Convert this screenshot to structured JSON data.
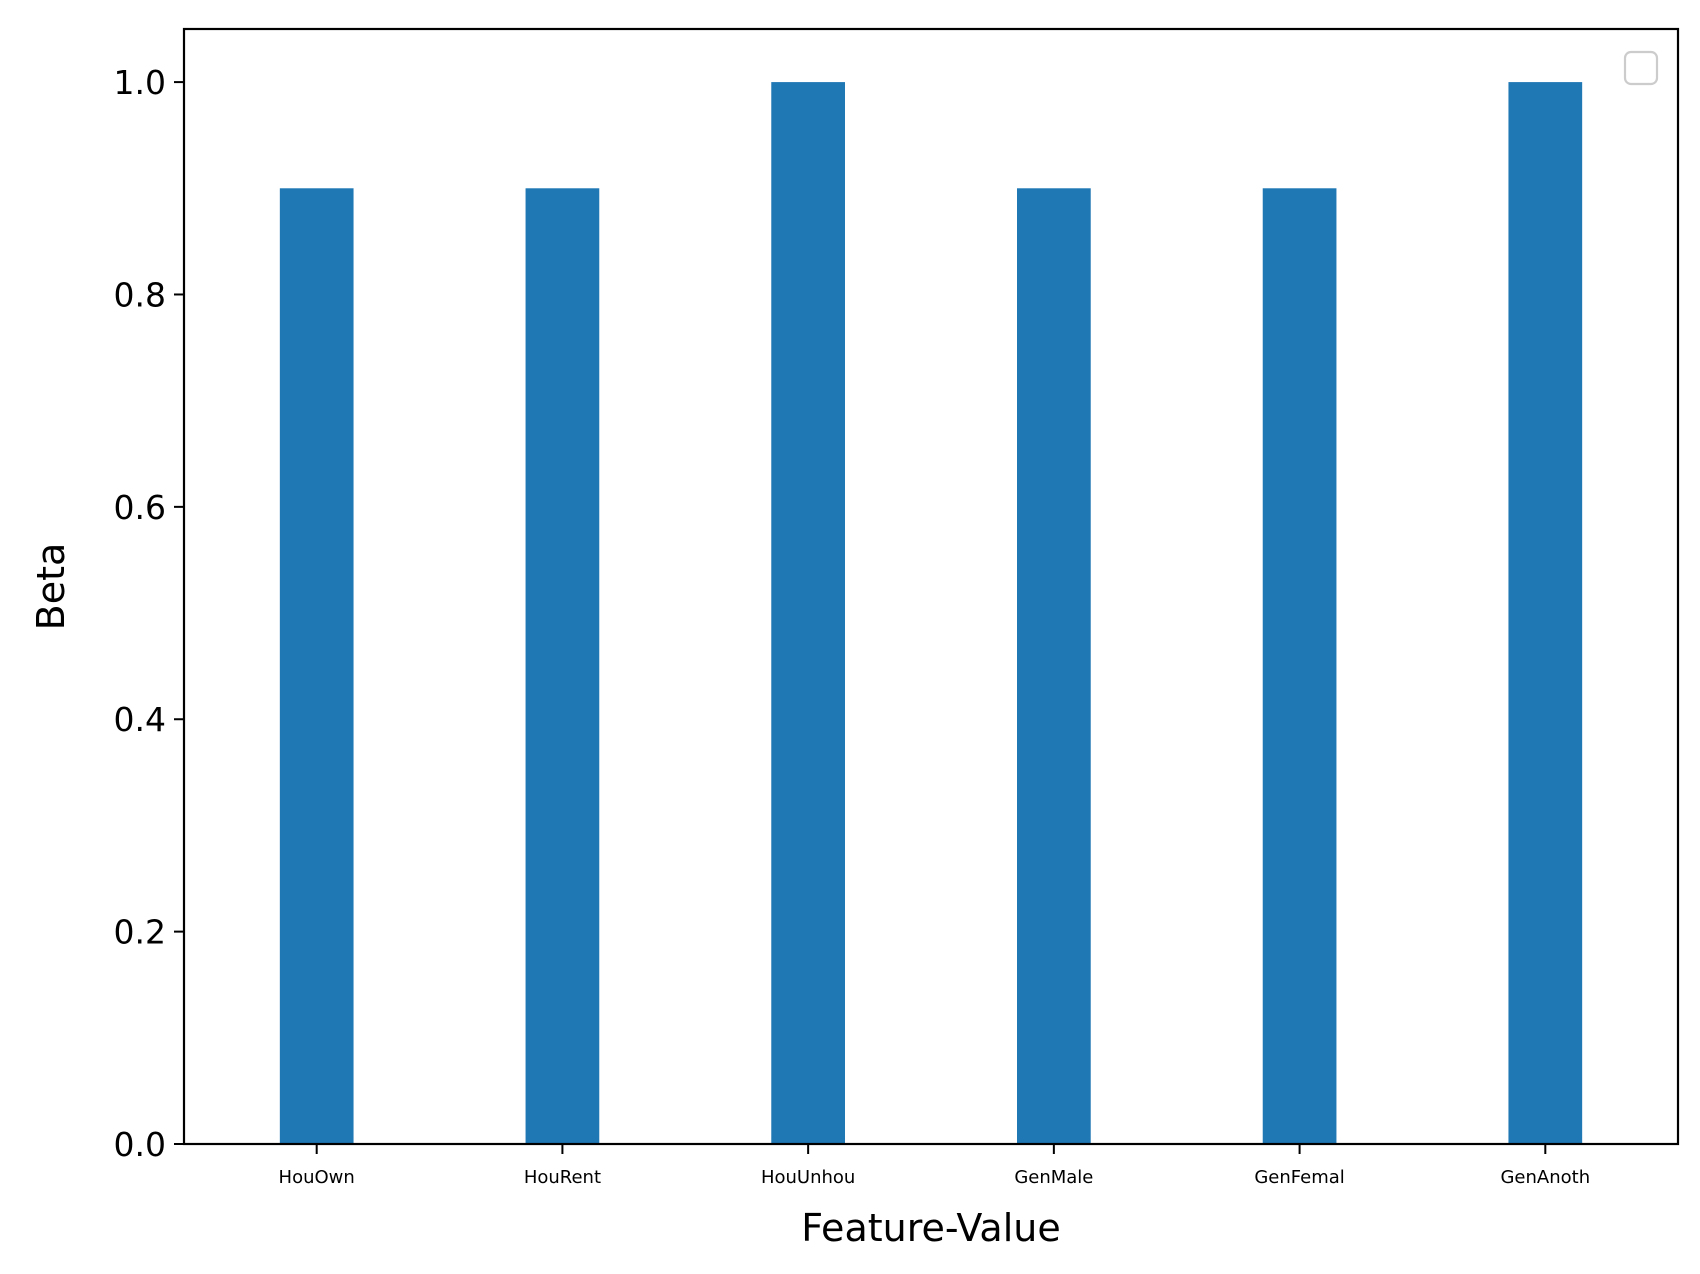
{
  "chart_data": {
    "type": "bar",
    "title": "",
    "xlabel": "Feature-Value",
    "ylabel": "Beta",
    "categories": [
      "HouOwn",
      "HouRent",
      "HouUnhou",
      "GenMale",
      "GenFemal",
      "GenAnoth"
    ],
    "values": [
      0.9,
      0.9,
      1.0,
      0.9,
      0.9,
      1.0
    ],
    "ylim": [
      0,
      1.05
    ],
    "yticks": [
      "0.0",
      "0.2",
      "0.4",
      "0.6",
      "0.8",
      "1.0"
    ],
    "grid": false,
    "legend": {
      "placement": "top-right",
      "entries": []
    },
    "colors": {
      "bar": "#1f77b4",
      "axes": "#000000",
      "legend_border": "#cccccc"
    }
  }
}
